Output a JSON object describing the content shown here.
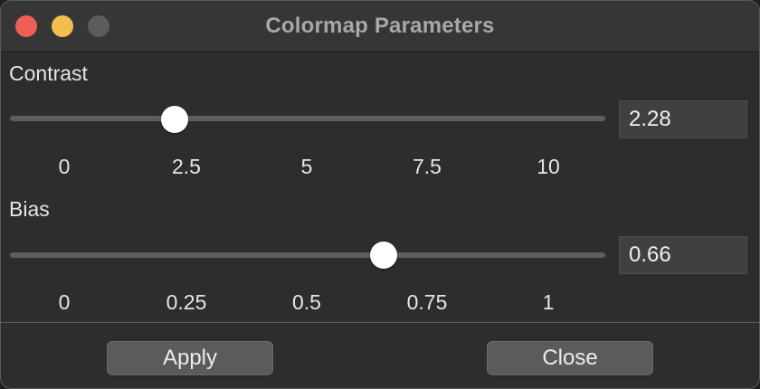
{
  "window": {
    "title": "Colormap Parameters"
  },
  "contrast": {
    "label": "Contrast",
    "value": "2.28",
    "min": 0,
    "max": 10,
    "position": 2.28,
    "ticks": [
      "0",
      "2.5",
      "5",
      "7.5",
      "10"
    ]
  },
  "bias": {
    "label": "Bias",
    "value": "0.66",
    "min": 0,
    "max": 1,
    "position": 0.66,
    "ticks": [
      "0",
      "0.25",
      "0.5",
      "0.75",
      "1"
    ]
  },
  "buttons": {
    "apply": "Apply",
    "close": "Close"
  },
  "colors": {
    "close": "#ee5f56",
    "minimize": "#f4be4f",
    "zoom_disabled": "#5c5c5c"
  }
}
